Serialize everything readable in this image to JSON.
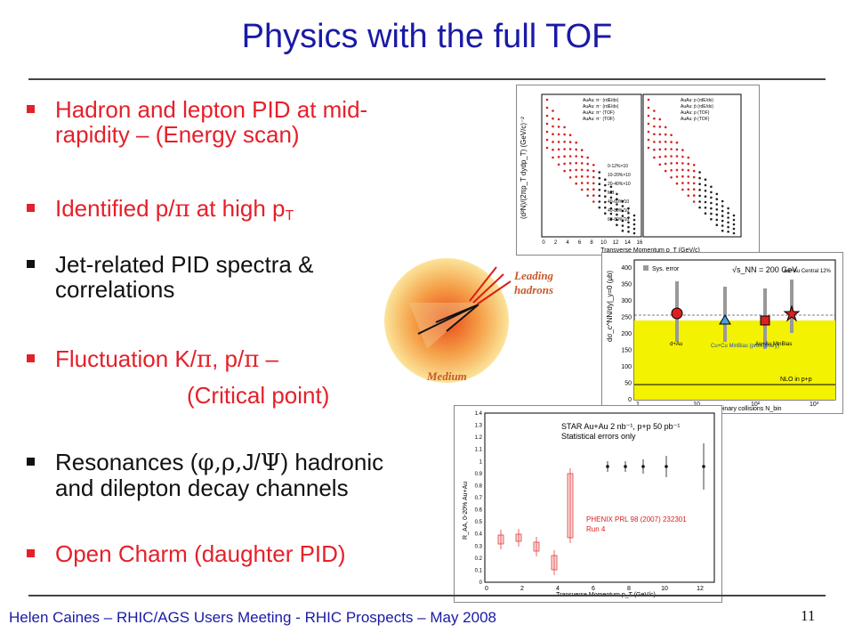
{
  "slide": {
    "title": "Physics with the full TOF",
    "bullets": [
      {
        "lines": [
          "Hadron and lepton PID at mid-",
          "rapidity – (Energy scan)"
        ],
        "color": "#e5202a"
      },
      {
        "pre": "Identified p/",
        "sym": "π",
        "mid": " at high p",
        "sub": "T",
        "color": "#e5202a"
      },
      {
        "lines": [
          "Jet-related PID spectra &",
          "correlations"
        ],
        "color": "#111111"
      },
      {
        "pre": "Fluctuation K/",
        "sym": "π",
        "mid": ", p/",
        "sym2": "π",
        "post": " –",
        "line2": "(Critical point)",
        "color": "#e5202a"
      },
      {
        "pre": "Resonances (",
        "sym": "φ,ρ,",
        "mid": "J/",
        "sym2": "Ψ",
        "post": ") hadronic",
        "line2": "and dilepton decay channels",
        "color": "#111111"
      },
      {
        "lines": [
          "Open Charm (daughter PID)"
        ],
        "color": "#e5202a"
      }
    ],
    "footer": "Helen Caines – RHIC/AGS Users Meeting -  RHIC Prospects – May 2008",
    "page_number": "11"
  },
  "jet_cartoon": {
    "leading_label": [
      "Leading",
      "hadrons"
    ],
    "medium_label": "Medium"
  },
  "fig_spectra": {
    "y_label": "(d²N)/(2πp_T dydp_T) (GeV/c)⁻²",
    "x_label": "Transverse Momentum p_T (GeV/c)",
    "left_legend": [
      "AuAu: π⁻ (rdE/dx)",
      "AuAu: π⁻ (rdE/dx)",
      "AuAu: π⁺ (TOF)",
      "AuAu: π⁻ (TOF)"
    ],
    "right_legend": [
      "AuAu: p (rdE/dx)",
      "AuAu: p̄ (rdE/dx)",
      "AuAu: p (TOF)",
      "AuAu: p̄ (TOF)"
    ],
    "centralities": [
      "0-12%×10",
      "10-20%×10",
      "20-40%×10",
      "MB",
      "40-60%/10",
      "40-80%/10",
      "60-80%/10"
    ],
    "x_ticks": [
      "0",
      "2",
      "4",
      "6",
      "8",
      "10",
      "12",
      "14",
      "16"
    ]
  },
  "fig_yield": {
    "legend_sys": "Sys. error",
    "energy": "√s_NN = 200 GeV",
    "y_label": "dσ_c^NN/dy|_y=0 (μb)",
    "x_label": "number of binary collisions N_bin",
    "y_ticks": [
      "0",
      "50",
      "100",
      "150",
      "200",
      "250",
      "300",
      "350",
      "400"
    ],
    "x_ticks": [
      "1",
      "10",
      "10²",
      "10³"
    ],
    "labels": [
      "d+Au",
      "Cu+Cu MinBias (preliminary)",
      "Au+Au MinBias",
      "Au+Au Central 12%"
    ],
    "nlo": "NLO in p+p"
  },
  "fig_raa": {
    "title1": "STAR Au+Au 2 nb⁻¹, p+p 50 pb⁻¹",
    "title2": "Statistical errors only",
    "y_label": "R_AA, 0-20% Au+Au",
    "x_label": "Transverse Momentum p_T (GeV/c)",
    "phenix": "PHENIX PRL 98 (2007) 232301",
    "run": "Run 4",
    "y_ticks": [
      "0",
      "0.1",
      "0.2",
      "0.3",
      "0.4",
      "0.5",
      "0.6",
      "0.7",
      "0.8",
      "0.9",
      "1",
      "1.1",
      "1.2",
      "1.3",
      "1.4"
    ],
    "x_ticks": [
      "0",
      "2",
      "4",
      "6",
      "8",
      "10",
      "12"
    ]
  }
}
